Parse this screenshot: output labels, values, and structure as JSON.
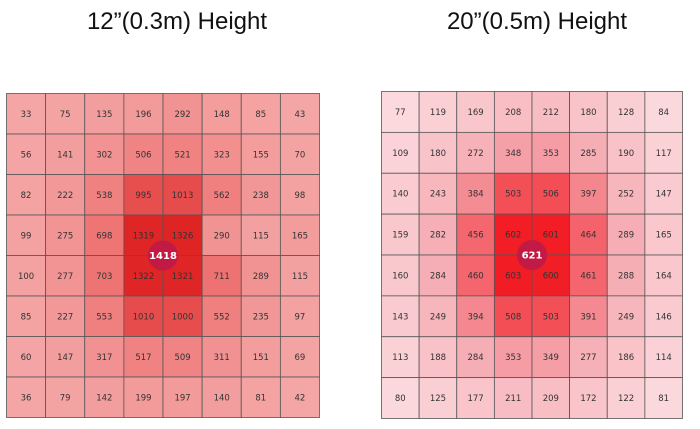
{
  "chart_data": [
    {
      "type": "heatmap",
      "title": "12”(0.3m) Height",
      "center_value": "1418",
      "rows": [
        [
          33,
          75,
          135,
          196,
          292,
          148,
          85,
          43
        ],
        [
          56,
          141,
          302,
          506,
          521,
          323,
          155,
          70
        ],
        [
          82,
          222,
          538,
          995,
          1013,
          562,
          238,
          98
        ],
        [
          99,
          275,
          698,
          1319,
          1326,
          290,
          115,
          165
        ],
        [
          100,
          277,
          703,
          1322,
          1321,
          711,
          289,
          115
        ],
        [
          85,
          227,
          553,
          1010,
          1000,
          552,
          235,
          97
        ],
        [
          60,
          147,
          317,
          517,
          509,
          311,
          151,
          69
        ],
        [
          36,
          79,
          142,
          199,
          197,
          140,
          81,
          42
        ]
      ],
      "colors": {
        "low": "#f4a6a6",
        "mid": "#ef7676",
        "high": "#df2424",
        "center": "#c21a45"
      }
    },
    {
      "type": "heatmap",
      "title": "20”(0.5m) Height",
      "center_value": "621",
      "rows": [
        [
          77,
          119,
          169,
          208,
          212,
          180,
          128,
          84
        ],
        [
          109,
          180,
          272,
          348,
          353,
          285,
          190,
          117
        ],
        [
          140,
          243,
          384,
          503,
          506,
          397,
          252,
          147
        ],
        [
          159,
          282,
          456,
          602,
          601,
          464,
          289,
          165
        ],
        [
          160,
          284,
          460,
          603,
          600,
          461,
          288,
          164
        ],
        [
          143,
          249,
          394,
          508,
          503,
          391,
          249,
          146
        ],
        [
          113,
          188,
          284,
          353,
          349,
          277,
          186,
          114
        ],
        [
          80,
          125,
          177,
          211,
          209,
          172,
          122,
          81
        ]
      ],
      "colors": {
        "low": "#fbd9dd",
        "mid": "#f5a3ab",
        "high": "#f21c24",
        "center": "#c21a45"
      }
    }
  ]
}
